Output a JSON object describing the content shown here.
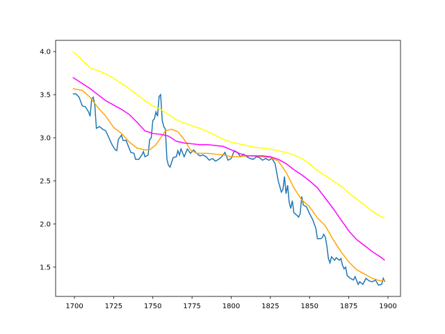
{
  "chart_data": {
    "type": "line",
    "xlim": [
      1688,
      1908
    ],
    "ylim": [
      1.16,
      4.13
    ],
    "xticks": [
      1700,
      1725,
      1750,
      1775,
      1800,
      1825,
      1850,
      1875,
      1900
    ],
    "yticks": [
      1.5,
      {
        "value": 2,
        "label": "2.0"
      },
      2.5,
      {
        "value": 3,
        "label": "3.0"
      },
      3.5,
      {
        "value": 4,
        "label": "4.0"
      }
    ],
    "series": [
      {
        "color": "#1f77b4",
        "x": [
          1699,
          1701,
          1703,
          1705,
          1707,
          1709,
          1710,
          1711,
          1712,
          1713,
          1714,
          1716,
          1718,
          1720,
          1722,
          1724,
          1726,
          1727,
          1728,
          1730,
          1731,
          1733,
          1734,
          1736,
          1738,
          1739,
          1741,
          1743,
          1744,
          1745,
          1747,
          1748,
          1749,
          1750,
          1751,
          1752,
          1753,
          1754,
          1755,
          1756,
          1757,
          1758,
          1759,
          1760,
          1761,
          1763,
          1765,
          1766,
          1767,
          1768,
          1770,
          1772,
          1774,
          1776,
          1778,
          1780,
          1782,
          1784,
          1786,
          1788,
          1790,
          1792,
          1794,
          1796,
          1798,
          1800,
          1802,
          1804,
          1806,
          1808,
          1810,
          1812,
          1814,
          1816,
          1818,
          1820,
          1822,
          1824,
          1826,
          1828,
          1829,
          1830,
          1832,
          1833,
          1834,
          1835,
          1836,
          1837,
          1838,
          1839,
          1840,
          1842,
          1843,
          1844,
          1845,
          1846,
          1848,
          1850,
          1852,
          1854,
          1855,
          1857,
          1858,
          1859,
          1860,
          1861,
          1862,
          1863,
          1864,
          1866,
          1867,
          1869,
          1870,
          1871,
          1872,
          1873,
          1874,
          1876,
          1878,
          1879,
          1881,
          1882,
          1884,
          1886,
          1888,
          1890,
          1892,
          1894,
          1896,
          1897,
          1898
        ],
        "values": [
          3.51,
          3.51,
          3.47,
          3.37,
          3.36,
          3.3,
          3.25,
          3.45,
          3.47,
          3.38,
          3.11,
          3.13,
          3.1,
          3.08,
          3.0,
          2.92,
          2.86,
          2.85,
          2.98,
          3.03,
          2.97,
          2.97,
          2.92,
          2.83,
          2.82,
          2.75,
          2.75,
          2.8,
          2.84,
          2.78,
          2.8,
          2.98,
          3.0,
          3.2,
          3.22,
          3.3,
          3.25,
          3.48,
          3.5,
          3.2,
          3.13,
          3.1,
          2.75,
          2.68,
          2.66,
          2.77,
          2.78,
          2.85,
          2.8,
          2.87,
          2.78,
          2.87,
          2.82,
          2.86,
          2.82,
          2.79,
          2.8,
          2.78,
          2.74,
          2.76,
          2.73,
          2.75,
          2.78,
          2.83,
          2.74,
          2.76,
          2.85,
          2.83,
          2.78,
          2.81,
          2.78,
          2.76,
          2.75,
          2.78,
          2.77,
          2.74,
          2.76,
          2.74,
          2.76,
          2.7,
          2.6,
          2.5,
          2.37,
          2.4,
          2.55,
          2.35,
          2.45,
          2.25,
          2.18,
          2.27,
          2.13,
          2.1,
          2.08,
          2.12,
          2.32,
          2.22,
          2.2,
          2.12,
          2.05,
          1.95,
          1.83,
          1.83,
          1.84,
          1.88,
          1.85,
          1.75,
          1.6,
          1.55,
          1.62,
          1.58,
          1.61,
          1.58,
          1.6,
          1.52,
          1.48,
          1.5,
          1.4,
          1.37,
          1.35,
          1.39,
          1.3,
          1.33,
          1.3,
          1.37,
          1.34,
          1.33,
          1.35,
          1.29,
          1.3,
          1.37,
          1.33
        ]
      },
      {
        "color": "#ffa500",
        "x": [
          1699,
          1705,
          1710,
          1715,
          1720,
          1725,
          1730,
          1735,
          1740,
          1745,
          1748,
          1752,
          1755,
          1758,
          1762,
          1766,
          1770,
          1774,
          1778,
          1785,
          1790,
          1795,
          1800,
          1805,
          1810,
          1815,
          1820,
          1825,
          1830,
          1835,
          1840,
          1845,
          1850,
          1855,
          1860,
          1865,
          1870,
          1875,
          1880,
          1885,
          1890,
          1895,
          1898
        ],
        "values": [
          3.57,
          3.55,
          3.47,
          3.35,
          3.25,
          3.12,
          3.05,
          2.95,
          2.88,
          2.86,
          2.86,
          2.92,
          3.0,
          3.08,
          3.1,
          3.07,
          2.98,
          2.86,
          2.82,
          2.82,
          2.81,
          2.8,
          2.78,
          2.78,
          2.79,
          2.79,
          2.78,
          2.77,
          2.73,
          2.6,
          2.42,
          2.28,
          2.2,
          2.07,
          1.98,
          1.82,
          1.68,
          1.56,
          1.47,
          1.42,
          1.37,
          1.34,
          1.35
        ]
      },
      {
        "color": "#ff00ff",
        "x": [
          1699,
          1705,
          1710,
          1715,
          1720,
          1725,
          1730,
          1735,
          1740,
          1745,
          1750,
          1755,
          1760,
          1765,
          1770,
          1775,
          1780,
          1785,
          1790,
          1795,
          1800,
          1805,
          1810,
          1815,
          1820,
          1825,
          1830,
          1835,
          1840,
          1845,
          1850,
          1855,
          1860,
          1865,
          1870,
          1875,
          1880,
          1885,
          1890,
          1895,
          1898
        ],
        "values": [
          3.7,
          3.63,
          3.57,
          3.5,
          3.43,
          3.38,
          3.33,
          3.27,
          3.18,
          3.08,
          3.05,
          3.04,
          3.02,
          2.96,
          2.94,
          2.93,
          2.92,
          2.92,
          2.91,
          2.9,
          2.86,
          2.82,
          2.79,
          2.79,
          2.79,
          2.78,
          2.75,
          2.7,
          2.63,
          2.57,
          2.5,
          2.42,
          2.3,
          2.18,
          2.05,
          1.92,
          1.82,
          1.75,
          1.68,
          1.62,
          1.58
        ]
      },
      {
        "color": "#ffff00",
        "x": [
          1699,
          1705,
          1710,
          1715,
          1720,
          1725,
          1730,
          1735,
          1740,
          1745,
          1750,
          1755,
          1760,
          1765,
          1770,
          1775,
          1780,
          1785,
          1790,
          1795,
          1800,
          1805,
          1810,
          1815,
          1820,
          1825,
          1830,
          1835,
          1840,
          1845,
          1850,
          1855,
          1860,
          1865,
          1870,
          1875,
          1880,
          1885,
          1890,
          1895,
          1898
        ],
        "values": [
          4.0,
          3.9,
          3.81,
          3.78,
          3.74,
          3.69,
          3.63,
          3.57,
          3.5,
          3.43,
          3.37,
          3.33,
          3.27,
          3.21,
          3.17,
          3.14,
          3.11,
          3.07,
          3.03,
          2.98,
          2.95,
          2.93,
          2.91,
          2.89,
          2.88,
          2.87,
          2.85,
          2.83,
          2.8,
          2.76,
          2.7,
          2.62,
          2.56,
          2.5,
          2.44,
          2.36,
          2.29,
          2.22,
          2.15,
          2.09,
          2.07
        ]
      }
    ]
  }
}
